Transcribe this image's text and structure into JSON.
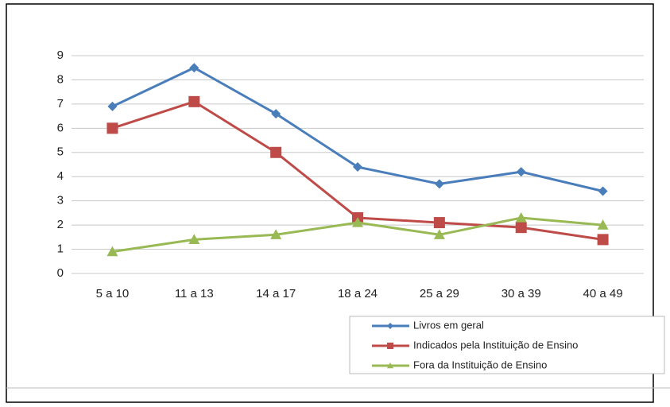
{
  "chart_data": {
    "type": "line",
    "categories": [
      "5 a 10",
      "11 a 13",
      "14 a 17",
      "18 a 24",
      "25 a 29",
      "30 a 39",
      "40 a 49"
    ],
    "series": [
      {
        "name": "Livros em geral",
        "color": "#4a7ebb",
        "marker": "diamond",
        "values": [
          6.9,
          8.5,
          6.6,
          4.4,
          3.7,
          4.2,
          3.4
        ]
      },
      {
        "name": "Indicados pela Instituição de Ensino",
        "color": "#be4b48",
        "marker": "square",
        "values": [
          6.0,
          7.1,
          5.0,
          2.3,
          2.1,
          1.9,
          1.4
        ]
      },
      {
        "name": "Fora da Instituição de Ensino",
        "color": "#98b954",
        "marker": "triangle",
        "values": [
          0.9,
          1.4,
          1.6,
          2.1,
          1.6,
          2.3,
          2.0
        ]
      }
    ],
    "ylim": [
      0,
      9
    ],
    "yticks": [
      0,
      1,
      2,
      3,
      4,
      5,
      6,
      7,
      8,
      9
    ],
    "grid": true,
    "legend_position": "bottom-right"
  }
}
